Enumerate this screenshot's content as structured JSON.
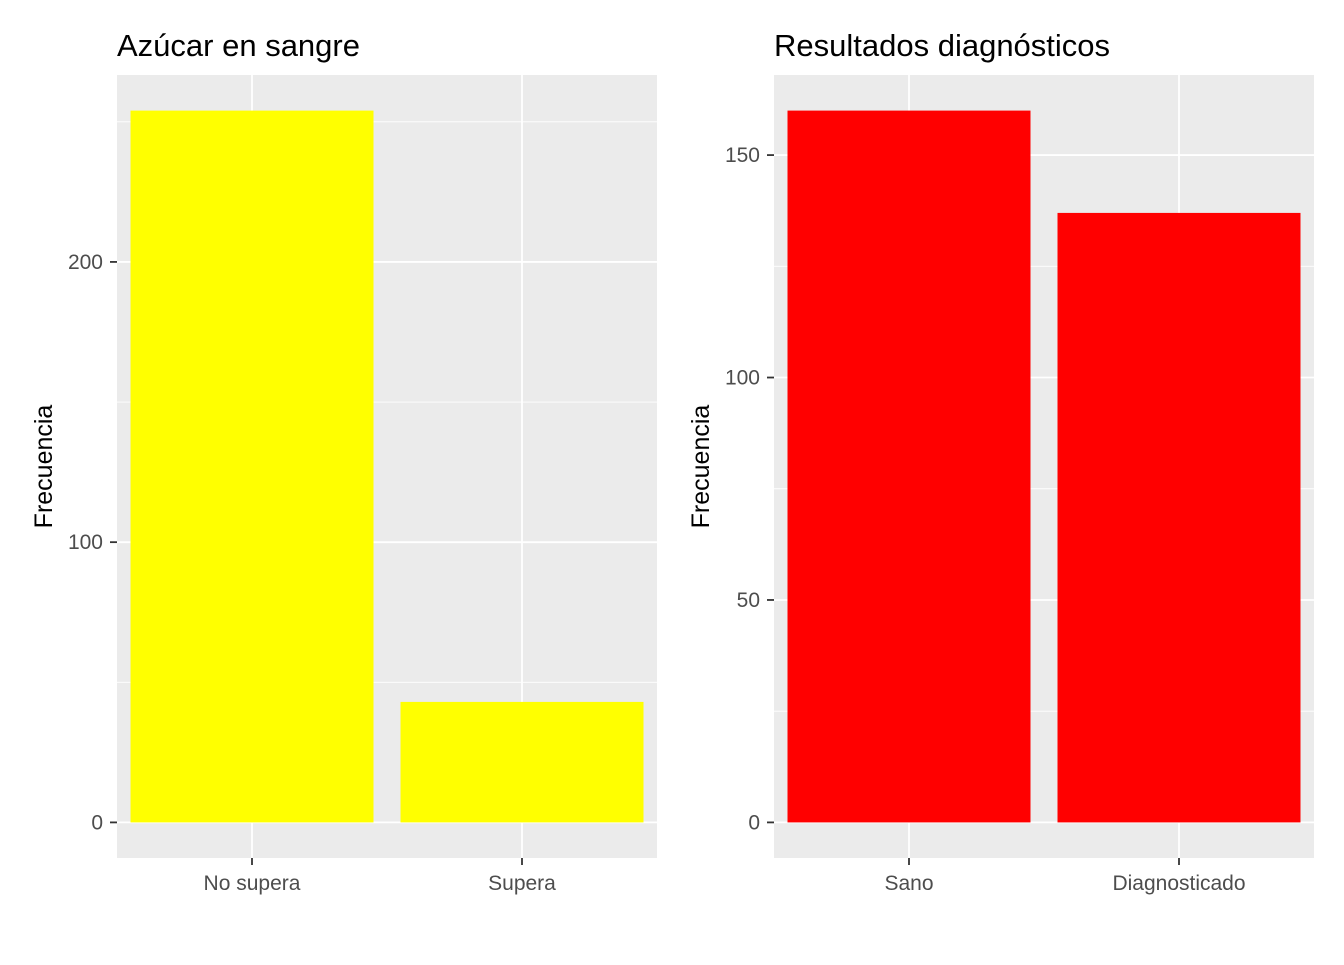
{
  "chart_data": [
    {
      "type": "bar",
      "title": "Azúcar en sangre",
      "xlabel": "",
      "ylabel": "Frecuencia",
      "categories": [
        "No supera",
        "Supera"
      ],
      "values": [
        254,
        43
      ],
      "ylim": [
        -12.7,
        266.7
      ],
      "yticks": [
        0,
        100,
        200
      ],
      "bar_color": "#FFFF00",
      "panel_color": "#EBEBEB",
      "grid": true,
      "legend": "none"
    },
    {
      "type": "bar",
      "title": "Resultados diagnósticos",
      "xlabel": "",
      "ylabel": "Frecuencia",
      "categories": [
        "Sano",
        "Diagnosticado"
      ],
      "values": [
        160,
        137
      ],
      "ylim": [
        -8,
        168
      ],
      "yticks": [
        0,
        50,
        100,
        150
      ],
      "bar_color": "#FF0000",
      "panel_color": "#EBEBEB",
      "grid": true,
      "legend": "none"
    }
  ]
}
